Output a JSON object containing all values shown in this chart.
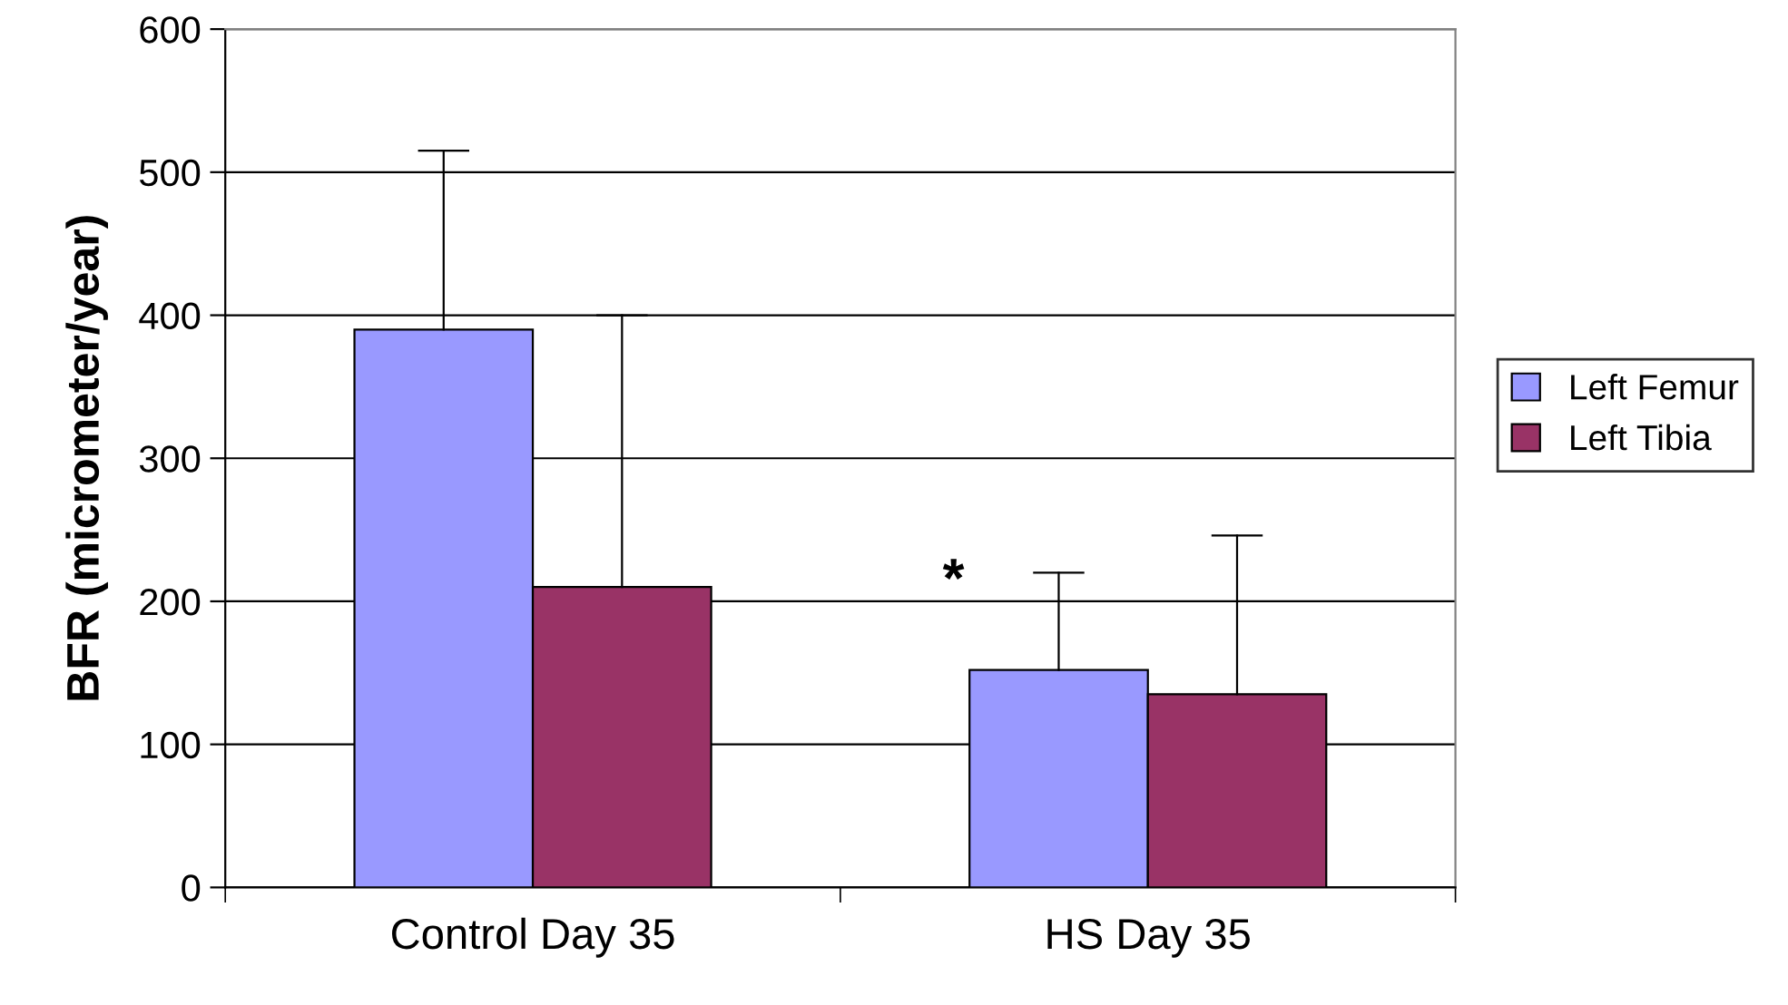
{
  "chart_data": {
    "type": "bar",
    "ylabel": "BFR (micrometer/year)",
    "categories": [
      "Control Day 35",
      "HS Day 35"
    ],
    "series": [
      {
        "name": "Left Femur",
        "color": "#9999ff",
        "values": [
          390,
          152
        ],
        "errors": [
          [
            390,
            515
          ],
          [
            152,
            220
          ]
        ]
      },
      {
        "name": "Left Tibia",
        "color": "#993366",
        "values": [
          210,
          135
        ],
        "errors": [
          [
            210,
            400
          ],
          [
            135,
            246
          ]
        ]
      }
    ],
    "ylim": [
      0,
      600
    ],
    "yticks": [
      0,
      100,
      200,
      300,
      400,
      500,
      600
    ],
    "grid": "y",
    "legend": "right",
    "annotations": [
      "*"
    ]
  }
}
